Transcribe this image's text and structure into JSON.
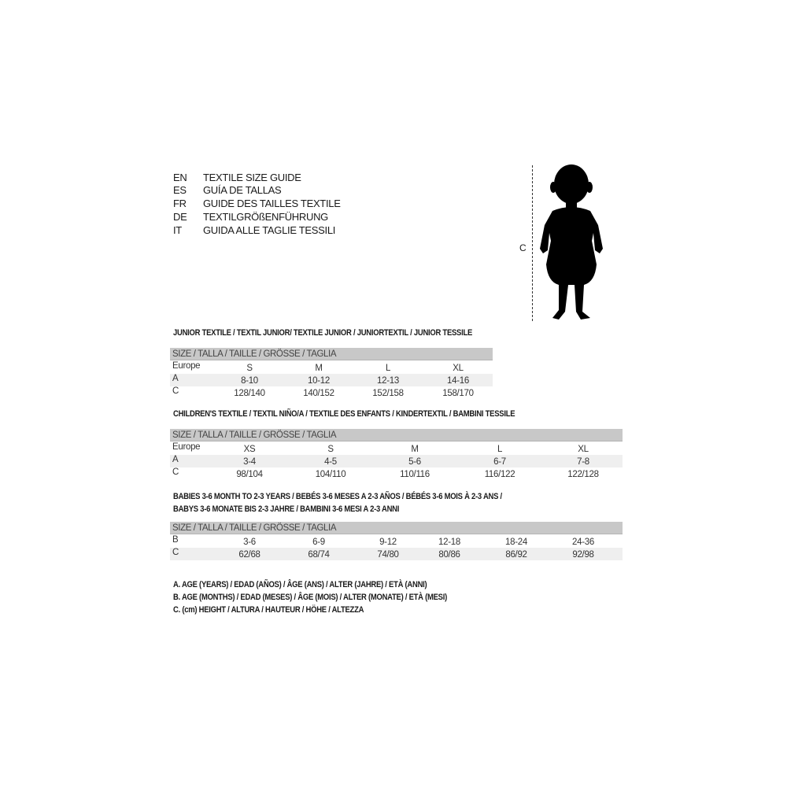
{
  "guide_titles": [
    {
      "code": "EN",
      "title": "TEXTILE SIZE GUIDE"
    },
    {
      "code": "ES",
      "title": "GUÍA DE TALLAS"
    },
    {
      "code": "FR",
      "title": "GUIDE DES TAILLES TEXTILE"
    },
    {
      "code": "DE",
      "title": "TEXTILGRÖßENFÜHRUNG"
    },
    {
      "code": "IT",
      "title": "GUIDA ALLE TAGLIE TESSILI"
    }
  ],
  "figure": {
    "measure_label": "C",
    "icon": "child-silhouette-icon"
  },
  "tables": [
    {
      "title": "JUNIOR TEXTILE / TEXTIL JUNIOR/ TEXTILE JUNIOR / JUNIORTEXTIL / JUNIOR TESSILE",
      "header": "SIZE / TALLA / TAILLE / GRÖSSE / TAGLIA",
      "rows": [
        {
          "label": "Europe",
          "values": [
            "S",
            "M",
            "L",
            "XL"
          ]
        },
        {
          "label": "A",
          "values": [
            "8-10",
            "10-12",
            "12-13",
            "14-16"
          ]
        },
        {
          "label": "C",
          "values": [
            "128/140",
            "140/152",
            "152/158",
            "158/170"
          ]
        }
      ]
    },
    {
      "title": "CHILDREN'S TEXTILE / TEXTIL NIÑO/A / TEXTILE DES ENFANTS / KINDERTEXTIL / BAMBINI TESSILE",
      "header": "SIZE / TALLA / TAILLE / GRÖSSE / TAGLIA",
      "rows": [
        {
          "label": "Europe",
          "values": [
            "XS",
            "S",
            "M",
            "L",
            "XL"
          ]
        },
        {
          "label": "A",
          "values": [
            "3-4",
            "4-5",
            "5-6",
            "6-7",
            "7-8"
          ]
        },
        {
          "label": "C",
          "values": [
            "98/104",
            "104/110",
            "110/116",
            "116/122",
            "122/128"
          ]
        }
      ]
    },
    {
      "title": "BABIES 3-6 MONTH TO 2-3 YEARS / BEBÉS 3-6 MESES A 2-3 AÑOS / BÉBÉS 3-6 MOIS À 2-3 ANS /",
      "title_line2": "BABYS 3-6 MONATE BIS 2-3 JAHRE / BAMBINI 3-6 MESI A 2-3 ANNI",
      "header": "SIZE / TALLA / TAILLE / GRÖSSE / TAGLIA",
      "rows": [
        {
          "label": "B",
          "values": [
            "3-6",
            "6-9",
            "9-12",
            "12-18",
            "18-24",
            "24-36"
          ]
        },
        {
          "label": "C",
          "values": [
            "62/68",
            "68/74",
            "74/80",
            "80/86",
            "86/92",
            "92/98"
          ]
        }
      ]
    }
  ],
  "legend": [
    "A. AGE (YEARS) / EDAD (AÑOS) / ÂGE (ANS) / ALTER (JAHRE) / ETÀ (ANNI)",
    "B. AGE (MONTHS) / EDAD (MESES) / ÂGE (MOIS) / ALTER (MONATE) / ETÀ (MESI)",
    "C. (cm) HEIGHT / ALTURA / HAUTEUR / HÖHE / ALTEZZA"
  ]
}
